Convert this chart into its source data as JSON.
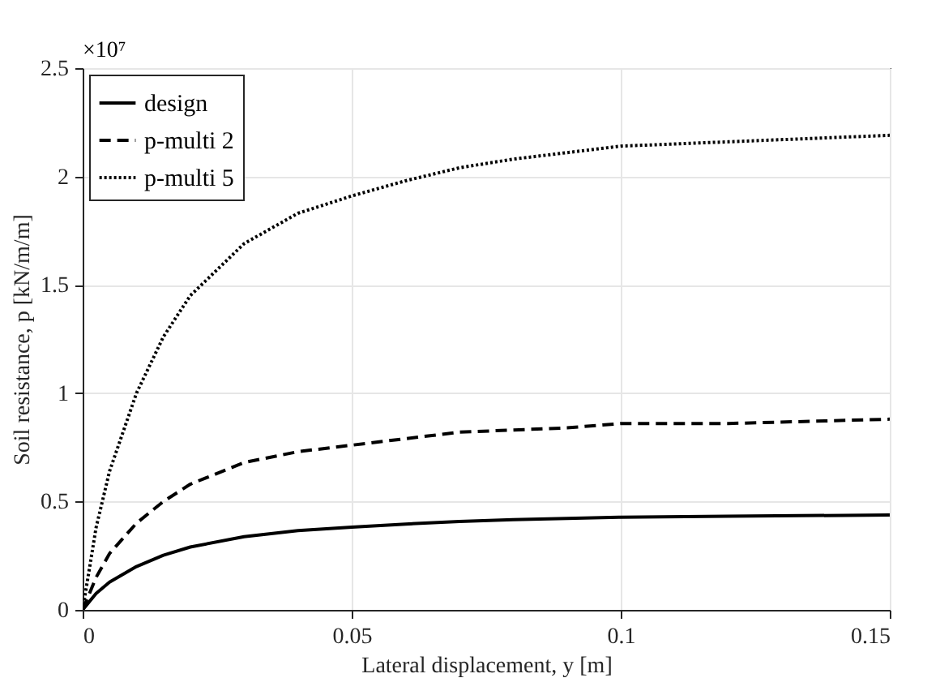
{
  "chart_data": {
    "type": "line",
    "xlabel": "Lateral displacement, y [m]",
    "ylabel": "Soil resistance, p [kN/m/m]",
    "annotations": [
      "×10⁷"
    ],
    "x": [
      0,
      0.0025,
      0.005,
      0.01,
      0.015,
      0.02,
      0.03,
      0.04,
      0.05,
      0.06,
      0.07,
      0.08,
      0.09,
      0.1,
      0.12,
      0.15
    ],
    "series": [
      {
        "name": "design",
        "color": "#000000",
        "line_style": "solid",
        "values": [
          0,
          0.076,
          0.128,
          0.2,
          0.252,
          0.29,
          0.338,
          0.366,
          0.382,
          0.396,
          0.408,
          0.416,
          0.422,
          0.428,
          0.432,
          0.438
        ]
      },
      {
        "name": "p-multi 2",
        "color": "#000000",
        "line_style": "dashed",
        "values": [
          0,
          0.15,
          0.26,
          0.4,
          0.5,
          0.58,
          0.68,
          0.73,
          0.76,
          0.79,
          0.82,
          0.83,
          0.84,
          0.86,
          0.86,
          0.88
        ]
      },
      {
        "name": "p-multi 5",
        "color": "#000000",
        "line_style": "dotted",
        "values": [
          0,
          0.38,
          0.64,
          1.0,
          1.26,
          1.45,
          1.69,
          1.83,
          1.91,
          1.98,
          2.04,
          2.08,
          2.11,
          2.14,
          2.16,
          2.19
        ]
      }
    ],
    "xlim": [
      0,
      0.15
    ],
    "xticks": [
      0,
      0.05,
      0.1,
      0.15
    ],
    "ylim": [
      0,
      2.5
    ],
    "yticks": [
      0,
      0.5,
      1,
      1.5,
      2,
      2.5
    ],
    "grid": true,
    "legend": "top left",
    "marker": "none"
  }
}
